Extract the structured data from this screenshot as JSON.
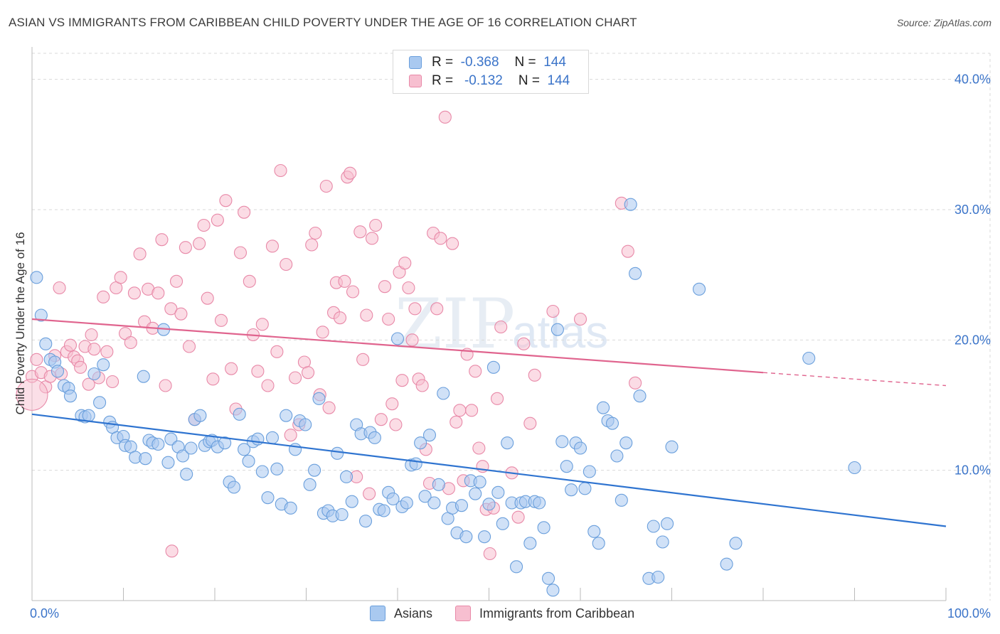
{
  "header": {
    "title": "ASIAN VS IMMIGRANTS FROM CARIBBEAN CHILD POVERTY UNDER THE AGE OF 16 CORRELATION CHART",
    "source": "Source: ZipAtlas.com"
  },
  "watermark": {
    "main": "ZIP",
    "sub": "atlas"
  },
  "legend_top": {
    "rows": [
      {
        "r_label": "R =",
        "r_value": "-0.368",
        "n_label": "N =",
        "n_value": "144"
      },
      {
        "r_label": "R =",
        "r_value": "-0.132",
        "n_label": "N =",
        "n_value": "144"
      }
    ]
  },
  "colors": {
    "asian_fill": "#a9c9f0",
    "asian_stroke": "#6a9fdc",
    "asian_line": "#2f74d0",
    "carib_fill": "#f7bfd0",
    "carib_stroke": "#e889a8",
    "carib_line": "#e0648e",
    "grid": "#d9d9d9",
    "tick_label": "#3b74c9"
  },
  "chart_data": {
    "type": "scatter",
    "title": "ASIAN VS IMMIGRANTS FROM CARIBBEAN CHILD POVERTY UNDER THE AGE OF 16 CORRELATION CHART",
    "xlabel": "",
    "ylabel": "Child Poverty Under the Age of 16",
    "xlim": [
      0,
      100
    ],
    "ylim": [
      0,
      42
    ],
    "x_tick_labels": [
      "0.0%",
      "100.0%"
    ],
    "y_ticks": [
      10,
      20,
      30,
      40
    ],
    "y_tick_labels": [
      "10.0%",
      "20.0%",
      "30.0%",
      "40.0%"
    ],
    "grid": true,
    "legend_position": "top-center",
    "series": [
      {
        "name": "Asians",
        "r": -0.368,
        "n": 144,
        "trend": {
          "x": [
            0,
            100
          ],
          "y": [
            14.3,
            5.7
          ]
        },
        "points": [
          [
            0.5,
            24.8
          ],
          [
            1,
            21.9
          ],
          [
            1.5,
            19.7
          ],
          [
            2,
            18.5
          ],
          [
            2.5,
            18.3
          ],
          [
            2.8,
            17.6
          ],
          [
            3.5,
            16.5
          ],
          [
            4,
            16.3
          ],
          [
            4.2,
            15.7
          ],
          [
            5.4,
            14.2
          ],
          [
            5.8,
            14.1
          ],
          [
            6.2,
            14.2
          ],
          [
            6.8,
            17.4
          ],
          [
            7.4,
            15.2
          ],
          [
            7.8,
            18.1
          ],
          [
            8.5,
            13.7
          ],
          [
            8.8,
            13.3
          ],
          [
            9.3,
            12.5
          ],
          [
            10,
            12.6
          ],
          [
            10.2,
            11.9
          ],
          [
            10.8,
            11.8
          ],
          [
            11.3,
            11
          ],
          [
            12.4,
            10.9
          ],
          [
            12.8,
            12.3
          ],
          [
            13.2,
            12.1
          ],
          [
            13.8,
            12
          ],
          [
            12.2,
            17.2
          ],
          [
            14.4,
            20.8
          ],
          [
            14.9,
            10.6
          ],
          [
            15.2,
            12.4
          ],
          [
            16,
            11.8
          ],
          [
            16.5,
            11.1
          ],
          [
            16.9,
            9.7
          ],
          [
            17.4,
            11.7
          ],
          [
            17.8,
            13.9
          ],
          [
            18.4,
            14.2
          ],
          [
            18.9,
            11.9
          ],
          [
            19.4,
            12.2
          ],
          [
            19.7,
            12.3
          ],
          [
            20.3,
            11.8
          ],
          [
            21.1,
            12.1
          ],
          [
            21.6,
            9.1
          ],
          [
            22.1,
            8.7
          ],
          [
            22.7,
            14.3
          ],
          [
            23.2,
            11.6
          ],
          [
            23.7,
            10.7
          ],
          [
            24.2,
            12.2
          ],
          [
            24.7,
            12.4
          ],
          [
            25.2,
            9.9
          ],
          [
            25.8,
            7.9
          ],
          [
            26.3,
            12.5
          ],
          [
            26.8,
            10.1
          ],
          [
            27.3,
            7.4
          ],
          [
            27.8,
            14.2
          ],
          [
            28.3,
            7.1
          ],
          [
            28.8,
            11.6
          ],
          [
            29.3,
            13.8
          ],
          [
            29.9,
            13.5
          ],
          [
            30.4,
            8.9
          ],
          [
            30.9,
            10
          ],
          [
            31.4,
            15.5
          ],
          [
            31.9,
            6.7
          ],
          [
            32.4,
            6.9
          ],
          [
            32.9,
            6.5
          ],
          [
            33.4,
            11.3
          ],
          [
            33.9,
            6.6
          ],
          [
            34.4,
            9.5
          ],
          [
            35,
            7.6
          ],
          [
            35.5,
            13.5
          ],
          [
            36,
            12.8
          ],
          [
            36.5,
            6.1
          ],
          [
            37,
            12.9
          ],
          [
            37.5,
            12.5
          ],
          [
            38,
            7
          ],
          [
            38.5,
            6.9
          ],
          [
            39,
            8.3
          ],
          [
            39.5,
            7.8
          ],
          [
            40,
            20.1
          ],
          [
            40.5,
            7.2
          ],
          [
            41,
            7.5
          ],
          [
            41.5,
            10.4
          ],
          [
            42,
            10.5
          ],
          [
            42.5,
            12.1
          ],
          [
            43,
            8
          ],
          [
            43.5,
            12.7
          ],
          [
            44,
            7.5
          ],
          [
            44.5,
            8.9
          ],
          [
            45,
            15.9
          ],
          [
            45.5,
            6.3
          ],
          [
            46,
            7.1
          ],
          [
            46.5,
            5.2
          ],
          [
            47,
            7.3
          ],
          [
            47.5,
            4.9
          ],
          [
            48,
            9.2
          ],
          [
            48.5,
            8.2
          ],
          [
            49,
            9.1
          ],
          [
            49.5,
            4.9
          ],
          [
            50,
            7.4
          ],
          [
            50.5,
            17.9
          ],
          [
            51,
            8.3
          ],
          [
            51.5,
            5.9
          ],
          [
            52,
            12.1
          ],
          [
            52.5,
            7.5
          ],
          [
            53,
            2.6
          ],
          [
            53.5,
            7.5
          ],
          [
            54,
            7.6
          ],
          [
            54.5,
            4.4
          ],
          [
            55,
            7.6
          ],
          [
            55.5,
            7.5
          ],
          [
            56,
            5.6
          ],
          [
            56.5,
            1.7
          ],
          [
            57,
            0.8
          ],
          [
            57.5,
            20.8
          ],
          [
            58,
            12.2
          ],
          [
            58.5,
            10.3
          ],
          [
            59,
            8.5
          ],
          [
            59.5,
            12.1
          ],
          [
            60,
            11.7
          ],
          [
            60.5,
            8.6
          ],
          [
            61,
            9.9
          ],
          [
            61.5,
            5.3
          ],
          [
            62,
            4.4
          ],
          [
            62.5,
            14.8
          ],
          [
            63,
            13.8
          ],
          [
            63.5,
            13.6
          ],
          [
            64,
            11.1
          ],
          [
            64.5,
            7.7
          ],
          [
            65,
            12.1
          ],
          [
            65.5,
            30.4
          ],
          [
            66,
            25.1
          ],
          [
            66.5,
            15.7
          ],
          [
            67.5,
            1.7
          ],
          [
            68,
            5.7
          ],
          [
            68.5,
            1.8
          ],
          [
            69,
            4.5
          ],
          [
            69.5,
            5.9
          ],
          [
            70,
            11.8
          ],
          [
            73,
            23.9
          ],
          [
            76,
            2.8
          ],
          [
            77,
            4.4
          ],
          [
            85,
            18.6
          ],
          [
            90,
            10.2
          ]
        ]
      },
      {
        "name": "Immigrants from Caribbean",
        "r": -0.132,
        "n": 144,
        "trend": {
          "x": [
            0,
            80
          ],
          "y": [
            21.6,
            17.5
          ],
          "dashed_to": [
            100,
            16.5
          ]
        },
        "points": [
          [
            0,
            17.2
          ],
          [
            0.5,
            18.5
          ],
          [
            1,
            17.5
          ],
          [
            1.5,
            16.4
          ],
          [
            2,
            17.2
          ],
          [
            2.5,
            18.8
          ],
          [
            3,
            24
          ],
          [
            3.2,
            17.4
          ],
          [
            3.8,
            19.1
          ],
          [
            4.2,
            19.6
          ],
          [
            4.6,
            18.7
          ],
          [
            5,
            18.4
          ],
          [
            5.3,
            17.9
          ],
          [
            5.8,
            19.5
          ],
          [
            6.2,
            16.6
          ],
          [
            6.5,
            20.4
          ],
          [
            6.8,
            19.3
          ],
          [
            7.3,
            17.1
          ],
          [
            7.8,
            23.3
          ],
          [
            8.2,
            19.1
          ],
          [
            8.8,
            16.8
          ],
          [
            9.2,
            24
          ],
          [
            9.7,
            24.8
          ],
          [
            10.2,
            20.5
          ],
          [
            10.8,
            19.8
          ],
          [
            11.2,
            23.6
          ],
          [
            11.8,
            26.6
          ],
          [
            12.3,
            21.4
          ],
          [
            12.7,
            23.9
          ],
          [
            13.2,
            20.9
          ],
          [
            13.8,
            23.6
          ],
          [
            14.2,
            27.7
          ],
          [
            14.6,
            16.5
          ],
          [
            15.2,
            22.4
          ],
          [
            15.8,
            24.5
          ],
          [
            16.3,
            22
          ],
          [
            16.8,
            27.1
          ],
          [
            17.2,
            19.5
          ],
          [
            17.8,
            13.9
          ],
          [
            18.3,
            27.4
          ],
          [
            18.8,
            28.8
          ],
          [
            19.2,
            23.2
          ],
          [
            19.8,
            17
          ],
          [
            20.3,
            29.2
          ],
          [
            20.7,
            21.5
          ],
          [
            21.2,
            30.7
          ],
          [
            21.8,
            17.8
          ],
          [
            22.3,
            14.7
          ],
          [
            22.8,
            26.7
          ],
          [
            23.2,
            29.8
          ],
          [
            23.8,
            24.5
          ],
          [
            24.2,
            20.4
          ],
          [
            24.7,
            17.6
          ],
          [
            25.2,
            21.2
          ],
          [
            25.8,
            16.5
          ],
          [
            26.3,
            27.2
          ],
          [
            26.8,
            19.1
          ],
          [
            27.2,
            33
          ],
          [
            27.8,
            25.8
          ],
          [
            28.3,
            12.7
          ],
          [
            28.8,
            17.1
          ],
          [
            29.2,
            13.5
          ],
          [
            29.8,
            18.3
          ],
          [
            30.2,
            17.5
          ],
          [
            30.6,
            27.3
          ],
          [
            31,
            28.2
          ],
          [
            31.5,
            15.8
          ],
          [
            31.8,
            20.6
          ],
          [
            32.2,
            31.8
          ],
          [
            32.5,
            14.8
          ],
          [
            33,
            22.1
          ],
          [
            33.3,
            24.4
          ],
          [
            33.7,
            21.7
          ],
          [
            34.2,
            24.5
          ],
          [
            34.5,
            32.5
          ],
          [
            34.8,
            32.8
          ],
          [
            35.1,
            23.7
          ],
          [
            35.5,
            9.5
          ],
          [
            35.9,
            28.3
          ],
          [
            36.2,
            18.5
          ],
          [
            36.6,
            21.9
          ],
          [
            36.9,
            8.2
          ],
          [
            37.2,
            27.8
          ],
          [
            37.6,
            28.8
          ],
          [
            38.2,
            13.9
          ],
          [
            38.6,
            24.1
          ],
          [
            39,
            21.6
          ],
          [
            39.4,
            15.1
          ],
          [
            39.8,
            13.5
          ],
          [
            40.2,
            25.2
          ],
          [
            40.5,
            16.9
          ],
          [
            40.8,
            25.9
          ],
          [
            41.2,
            24
          ],
          [
            41.6,
            20
          ],
          [
            41.9,
            22.4
          ],
          [
            42.3,
            17
          ],
          [
            42.7,
            16.5
          ],
          [
            43.1,
            11.6
          ],
          [
            43.5,
            9
          ],
          [
            43.9,
            28.2
          ],
          [
            44.3,
            22.4
          ],
          [
            44.7,
            27.8
          ],
          [
            45.2,
            37.1
          ],
          [
            45.6,
            8.6
          ],
          [
            46,
            27.4
          ],
          [
            46.4,
            13.7
          ],
          [
            46.8,
            14.6
          ],
          [
            47.2,
            9.2
          ],
          [
            47.6,
            18.9
          ],
          [
            48.1,
            14.6
          ],
          [
            48.5,
            17.6
          ],
          [
            48.9,
            11.7
          ],
          [
            49.3,
            10.3
          ],
          [
            49.7,
            7
          ],
          [
            50.1,
            3.6
          ],
          [
            50.5,
            7.1
          ],
          [
            50.9,
            15.5
          ],
          [
            51.3,
            21
          ],
          [
            52.5,
            9.8
          ],
          [
            53.2,
            6.4
          ],
          [
            53.8,
            19.7
          ],
          [
            54.5,
            13.6
          ],
          [
            55,
            17.3
          ],
          [
            57,
            22.2
          ],
          [
            60,
            21.6
          ],
          [
            64.5,
            30.5
          ],
          [
            65.2,
            26.8
          ],
          [
            66,
            16.7
          ],
          [
            15.3,
            3.8
          ]
        ]
      }
    ]
  },
  "bottom_legend": {
    "items": [
      {
        "label": "Asians"
      },
      {
        "label": "Immigrants from Caribbean"
      }
    ]
  }
}
